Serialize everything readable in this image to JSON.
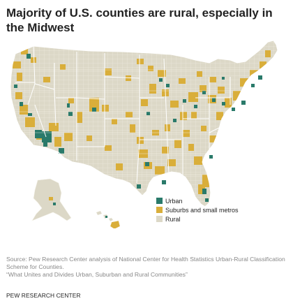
{
  "title": "Majority of U.S. counties are rural, especially in the Midwest",
  "map": {
    "region": "United States counties",
    "colors": {
      "rural": "#dcd8c7",
      "suburban": "#d9ae3a",
      "urban": "#2a7a6a",
      "border": "#f6f4ec",
      "state_border": "#ffffff"
    },
    "categories": [
      "Urban",
      "Suburbs and small metros",
      "Rural"
    ]
  },
  "legend": {
    "items": [
      {
        "label": "Urban",
        "color": "#2a7a6a"
      },
      {
        "label": "Suburbs and small metros",
        "color": "#d9ae3a"
      },
      {
        "label": "Rural",
        "color": "#dcd8c7"
      }
    ]
  },
  "source": "Source: Pew Research Center analysis of National Center for Health Statistics Urban-Rural Classification Scheme for Counties.",
  "note": "“What Unites and Divides Urban, Suburban and Rural Communities”",
  "organization": "PEW RESEARCH CENTER"
}
